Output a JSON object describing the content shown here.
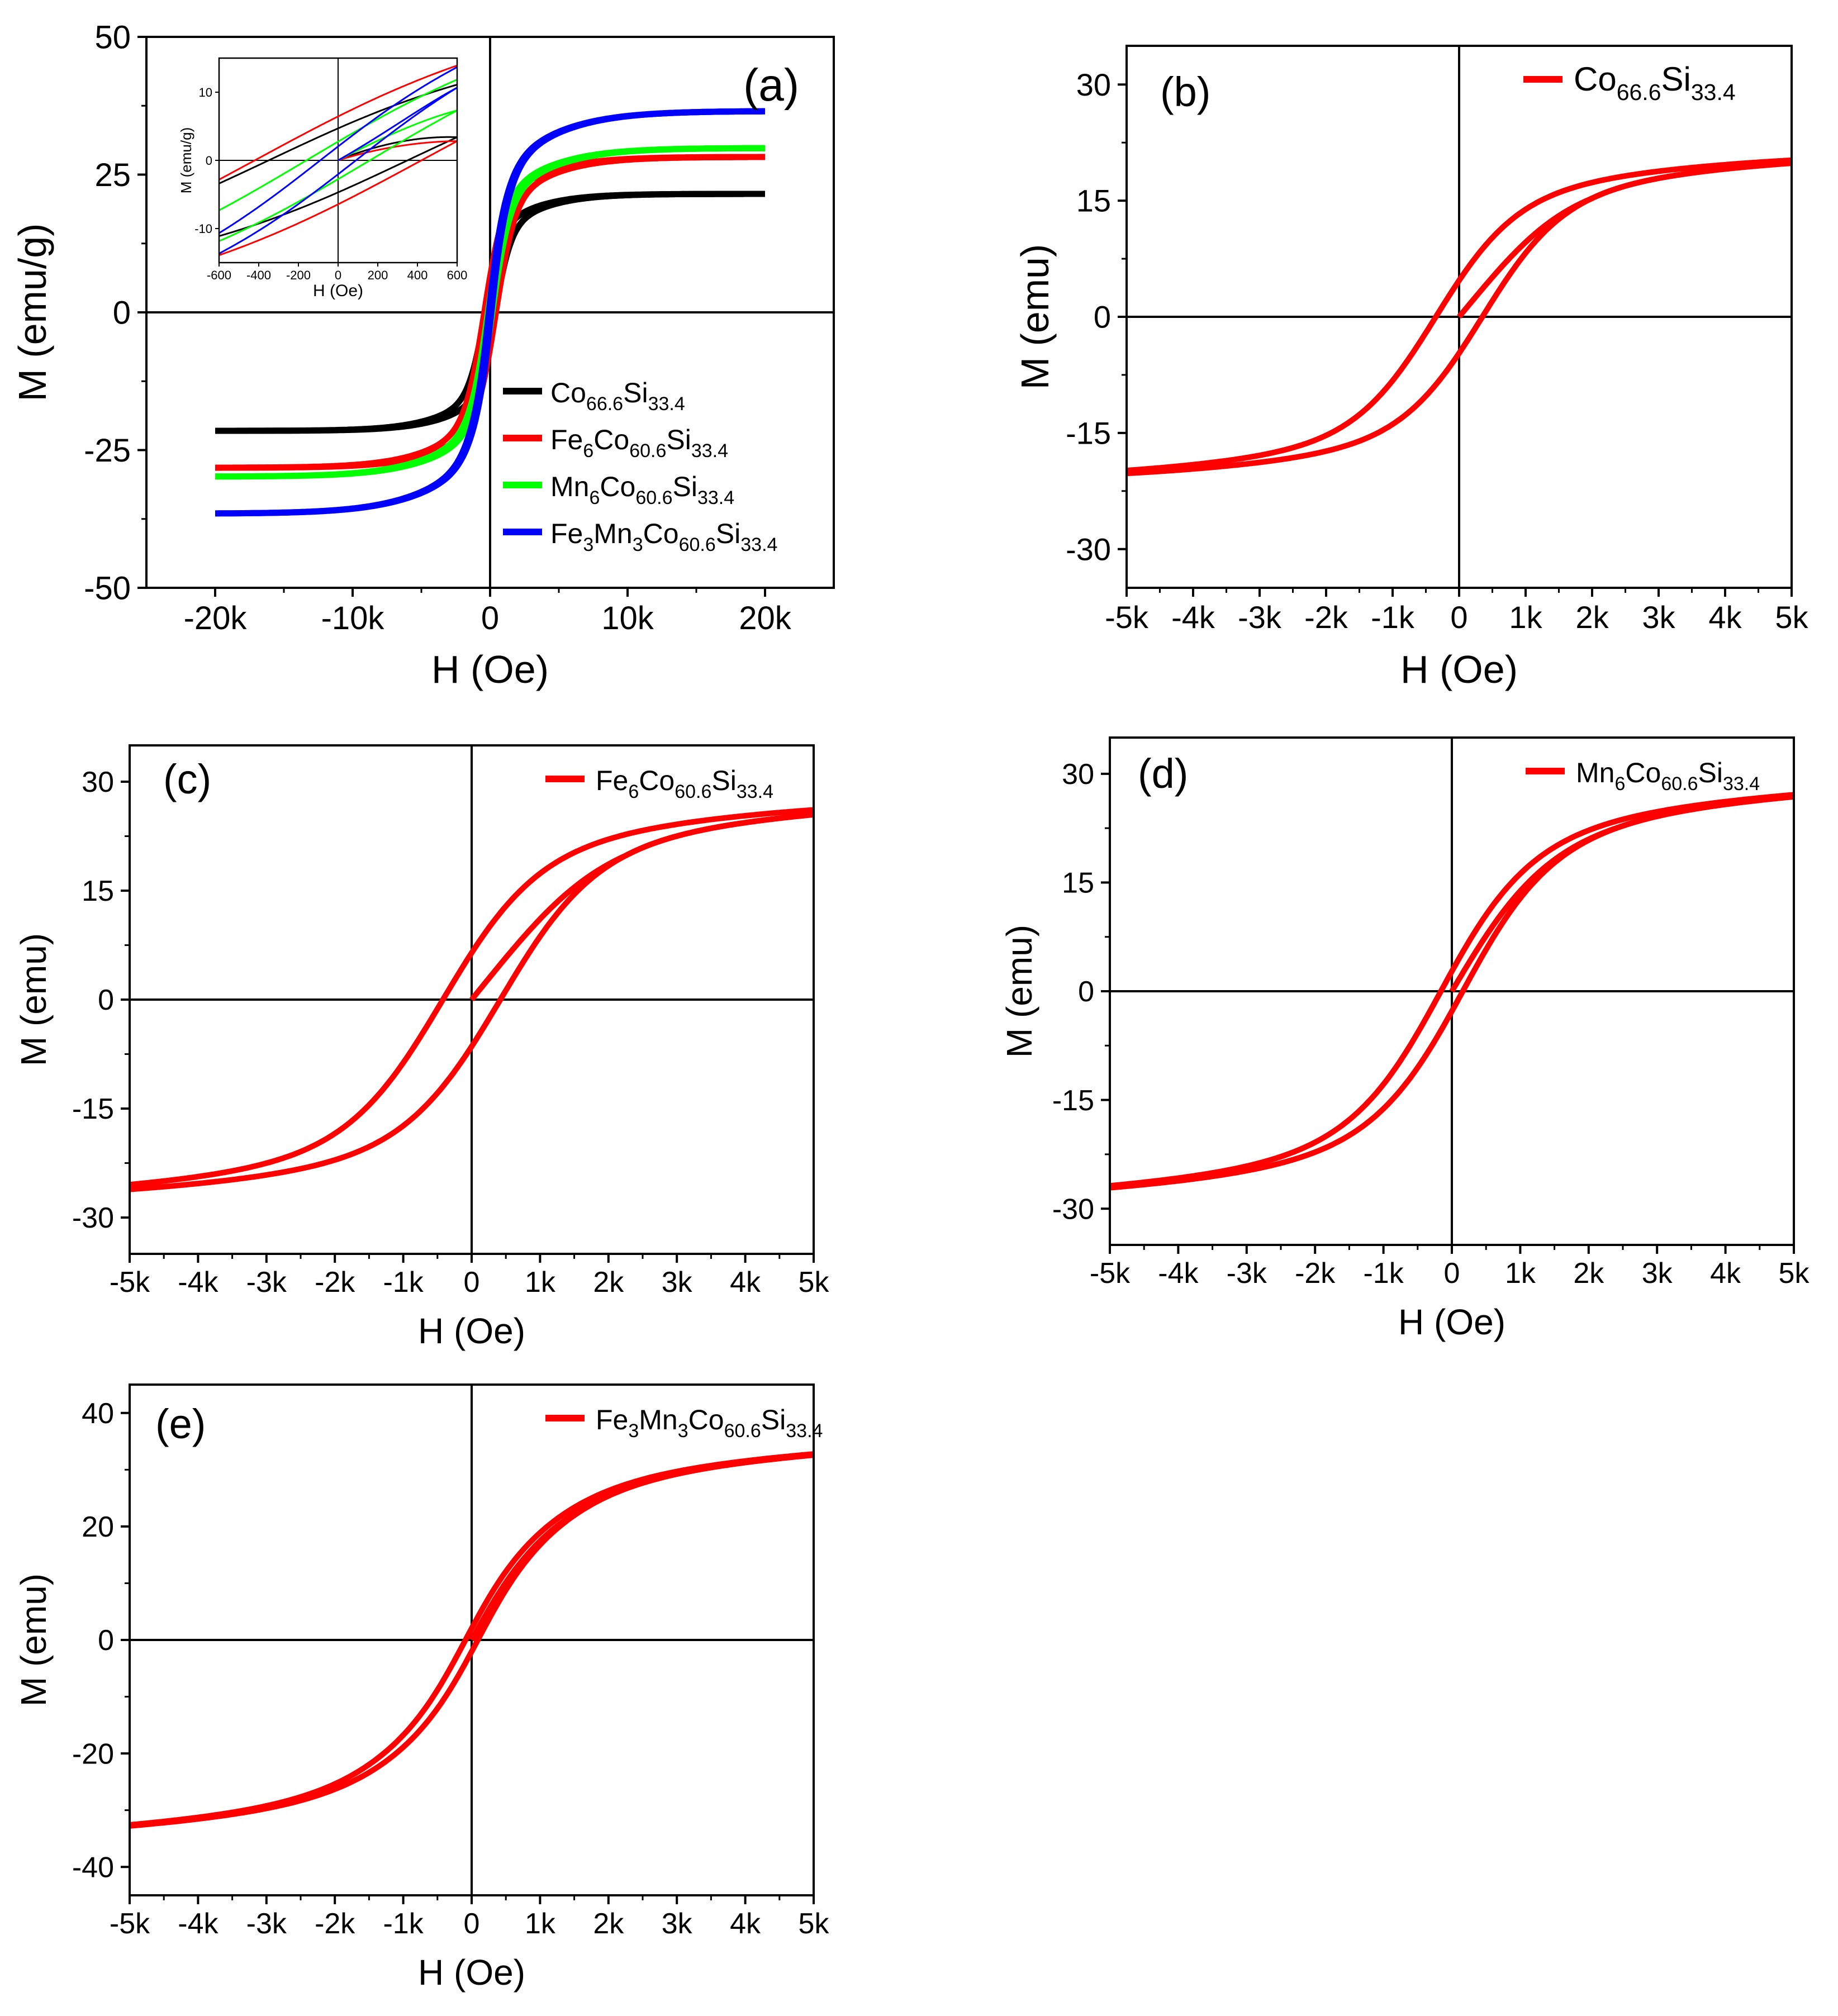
{
  "chart_data": [
    {
      "id": "a",
      "type": "line",
      "panel_label": "(a)",
      "xlabel": "H (Oe)",
      "ylabel": "M (emu/g)",
      "xlim": [
        -25000,
        25000
      ],
      "ylim": [
        -50,
        50
      ],
      "xticks": [
        -20000,
        -10000,
        0,
        10000,
        20000
      ],
      "xtick_labels": [
        "-20k",
        "-10k",
        "0",
        "10k",
        "20k"
      ],
      "yticks": [
        -50,
        -25,
        0,
        25,
        50
      ],
      "ytick_labels": [
        "-50",
        "-25",
        "0",
        "25",
        "50"
      ],
      "legend_position": "bottom-right",
      "series": [
        {
          "name": "Co66.6Si33.4",
          "label_parts": [
            [
              "Co",
              ""
            ],
            [
              "66.6",
              "sub"
            ],
            [
              "Si",
              ""
            ],
            [
              "33.4",
              "sub"
            ]
          ],
          "color": "#000000",
          "x_range": [
            -20000,
            20000
          ],
          "ms": 21.5,
          "hc": 350,
          "mr": 6,
          "hk": 2200
        },
        {
          "name": "Fe6Co60.6Si33.4",
          "label_parts": [
            [
              "Fe",
              ""
            ],
            [
              "6",
              "sub"
            ],
            [
              "Co",
              ""
            ],
            [
              "60.6",
              "sub"
            ],
            [
              "Si",
              ""
            ],
            [
              "33.4",
              "sub"
            ]
          ],
          "color": "#ff0000",
          "x_range": [
            -20000,
            20000
          ],
          "ms": 28.2,
          "hc": 420,
          "mr": 8,
          "hk": 2500
        },
        {
          "name": "Mn6Co60.6Si33.4",
          "label_parts": [
            [
              "Mn",
              ""
            ],
            [
              "6",
              "sub"
            ],
            [
              "Co",
              ""
            ],
            [
              "60.6",
              "sub"
            ],
            [
              "Si",
              ""
            ],
            [
              "33.4",
              "sub"
            ]
          ],
          "color": "#00ff00",
          "x_range": [
            -20000,
            20000
          ],
          "ms": 29.8,
          "hc": 160,
          "mr": 5,
          "hk": 2700
        },
        {
          "name": "Fe3Mn3Co60.6Si33.4",
          "label_parts": [
            [
              "Fe",
              ""
            ],
            [
              "3",
              "sub"
            ],
            [
              "Mn",
              ""
            ],
            [
              "3",
              "sub"
            ],
            [
              "Co",
              ""
            ],
            [
              "60.6",
              "sub"
            ],
            [
              "Si",
              ""
            ],
            [
              "33.4",
              "sub"
            ]
          ],
          "color": "#0000ff",
          "x_range": [
            -20000,
            20000
          ],
          "ms": 36.5,
          "hc": 90,
          "mr": 5,
          "hk": 2900
        }
      ],
      "inset": {
        "xlabel": "H (Oe)",
        "ylabel": "M (emu/g)",
        "xlim": [
          -600,
          600
        ],
        "ylim": [
          -15,
          15
        ],
        "xticks": [
          -600,
          -400,
          -200,
          0,
          200,
          400,
          600
        ],
        "xtick_labels": [
          "-600",
          "-400",
          "-200",
          "0",
          "200",
          "400",
          "600"
        ],
        "yticks": [
          -10,
          0,
          10
        ],
        "ytick_labels": [
          "-10",
          "0",
          "10"
        ]
      }
    },
    {
      "id": "b",
      "type": "line",
      "panel_label": "(b)",
      "xlabel": "H (Oe)",
      "ylabel": "M (emu)",
      "xlim": [
        -5000,
        5000
      ],
      "ylim": [
        -35,
        35
      ],
      "xticks": [
        -5000,
        -4000,
        -3000,
        -2000,
        -1000,
        0,
        1000,
        2000,
        3000,
        4000,
        5000
      ],
      "xtick_labels": [
        "-5k",
        "-4k",
        "-3k",
        "-2k",
        "-1k",
        "0",
        "1k",
        "2k",
        "3k",
        "4k",
        "5k"
      ],
      "yticks": [
        -30,
        -15,
        0,
        15,
        30
      ],
      "ytick_labels": [
        "-30",
        "-15",
        "0",
        "15",
        "30"
      ],
      "legend_position": "top-right",
      "series": [
        {
          "name": "Co66.6Si33.4",
          "label_parts": [
            [
              "Co",
              ""
            ],
            [
              "66.6",
              "sub"
            ],
            [
              "Si",
              ""
            ],
            [
              "33.4",
              "sub"
            ]
          ],
          "color": "#ff0000",
          "x_range": [
            -5000,
            5000
          ],
          "ms": 21.5,
          "hc": 350,
          "mr": 6,
          "hk": 2200
        }
      ]
    },
    {
      "id": "c",
      "type": "line",
      "panel_label": "(c)",
      "xlabel": "H (Oe)",
      "ylabel": "M (emu)",
      "xlim": [
        -5000,
        5000
      ],
      "ylim": [
        -35,
        35
      ],
      "xticks": [
        -5000,
        -4000,
        -3000,
        -2000,
        -1000,
        0,
        1000,
        2000,
        3000,
        4000,
        5000
      ],
      "xtick_labels": [
        "-5k",
        "-4k",
        "-3k",
        "-2k",
        "-1k",
        "0",
        "1k",
        "2k",
        "3k",
        "4k",
        "5k"
      ],
      "yticks": [
        -30,
        -15,
        0,
        15,
        30
      ],
      "ytick_labels": [
        "-30",
        "-15",
        "0",
        "15",
        "30"
      ],
      "legend_position": "top-right",
      "series": [
        {
          "name": "Fe6Co60.6Si33.4",
          "label_parts": [
            [
              "Fe",
              ""
            ],
            [
              "6",
              "sub"
            ],
            [
              "Co",
              ""
            ],
            [
              "60.6",
              "sub"
            ],
            [
              "Si",
              ""
            ],
            [
              "33.4",
              "sub"
            ]
          ],
          "color": "#ff0000",
          "x_range": [
            -5000,
            5000
          ],
          "ms": 28.2,
          "hc": 420,
          "mr": 8,
          "hk": 2500
        }
      ]
    },
    {
      "id": "d",
      "type": "line",
      "panel_label": "(d)",
      "xlabel": "H (Oe)",
      "ylabel": "M (emu)",
      "xlim": [
        -5000,
        5000
      ],
      "ylim": [
        -35,
        35
      ],
      "xticks": [
        -5000,
        -4000,
        -3000,
        -2000,
        -1000,
        0,
        1000,
        2000,
        3000,
        4000,
        5000
      ],
      "xtick_labels": [
        "-5k",
        "-4k",
        "-3k",
        "-2k",
        "-1k",
        "0",
        "1k",
        "2k",
        "3k",
        "4k",
        "5k"
      ],
      "yticks": [
        -30,
        -15,
        0,
        15,
        30
      ],
      "ytick_labels": [
        "-30",
        "-15",
        "0",
        "15",
        "30"
      ],
      "legend_position": "top-right",
      "series": [
        {
          "name": "Mn6Co60.6Si33.4",
          "label_parts": [
            [
              "Mn",
              ""
            ],
            [
              "6",
              "sub"
            ],
            [
              "Co",
              ""
            ],
            [
              "60.6",
              "sub"
            ],
            [
              "Si",
              ""
            ],
            [
              "33.4",
              "sub"
            ]
          ],
          "color": "#ff0000",
          "x_range": [
            -5000,
            5000
          ],
          "ms": 29.8,
          "hc": 160,
          "mr": 5,
          "hk": 2700
        }
      ]
    },
    {
      "id": "e",
      "type": "line",
      "panel_label": "(e)",
      "xlabel": "H (Oe)",
      "ylabel": "M (emu)",
      "xlim": [
        -5000,
        5000
      ],
      "ylim": [
        -45,
        45
      ],
      "xticks": [
        -5000,
        -4000,
        -3000,
        -2000,
        -1000,
        0,
        1000,
        2000,
        3000,
        4000,
        5000
      ],
      "xtick_labels": [
        "-5k",
        "-4k",
        "-3k",
        "-2k",
        "-1k",
        "0",
        "1k",
        "2k",
        "3k",
        "4k",
        "5k"
      ],
      "yticks": [
        -40,
        -20,
        0,
        20,
        40
      ],
      "ytick_labels": [
        "-40",
        "-20",
        "0",
        "20",
        "40"
      ],
      "legend_position": "top-right",
      "series": [
        {
          "name": "Fe3Mn3Co60.6Si33.4",
          "label_parts": [
            [
              "Fe",
              ""
            ],
            [
              "3",
              "sub"
            ],
            [
              "Mn",
              ""
            ],
            [
              "3",
              "sub"
            ],
            [
              "Co",
              ""
            ],
            [
              "60.6",
              "sub"
            ],
            [
              "Si",
              ""
            ],
            [
              "33.4",
              "sub"
            ]
          ],
          "color": "#ff0000",
          "x_range": [
            -5000,
            5000
          ],
          "ms": 36.5,
          "hc": 90,
          "mr": 5,
          "hk": 2900
        }
      ]
    }
  ]
}
